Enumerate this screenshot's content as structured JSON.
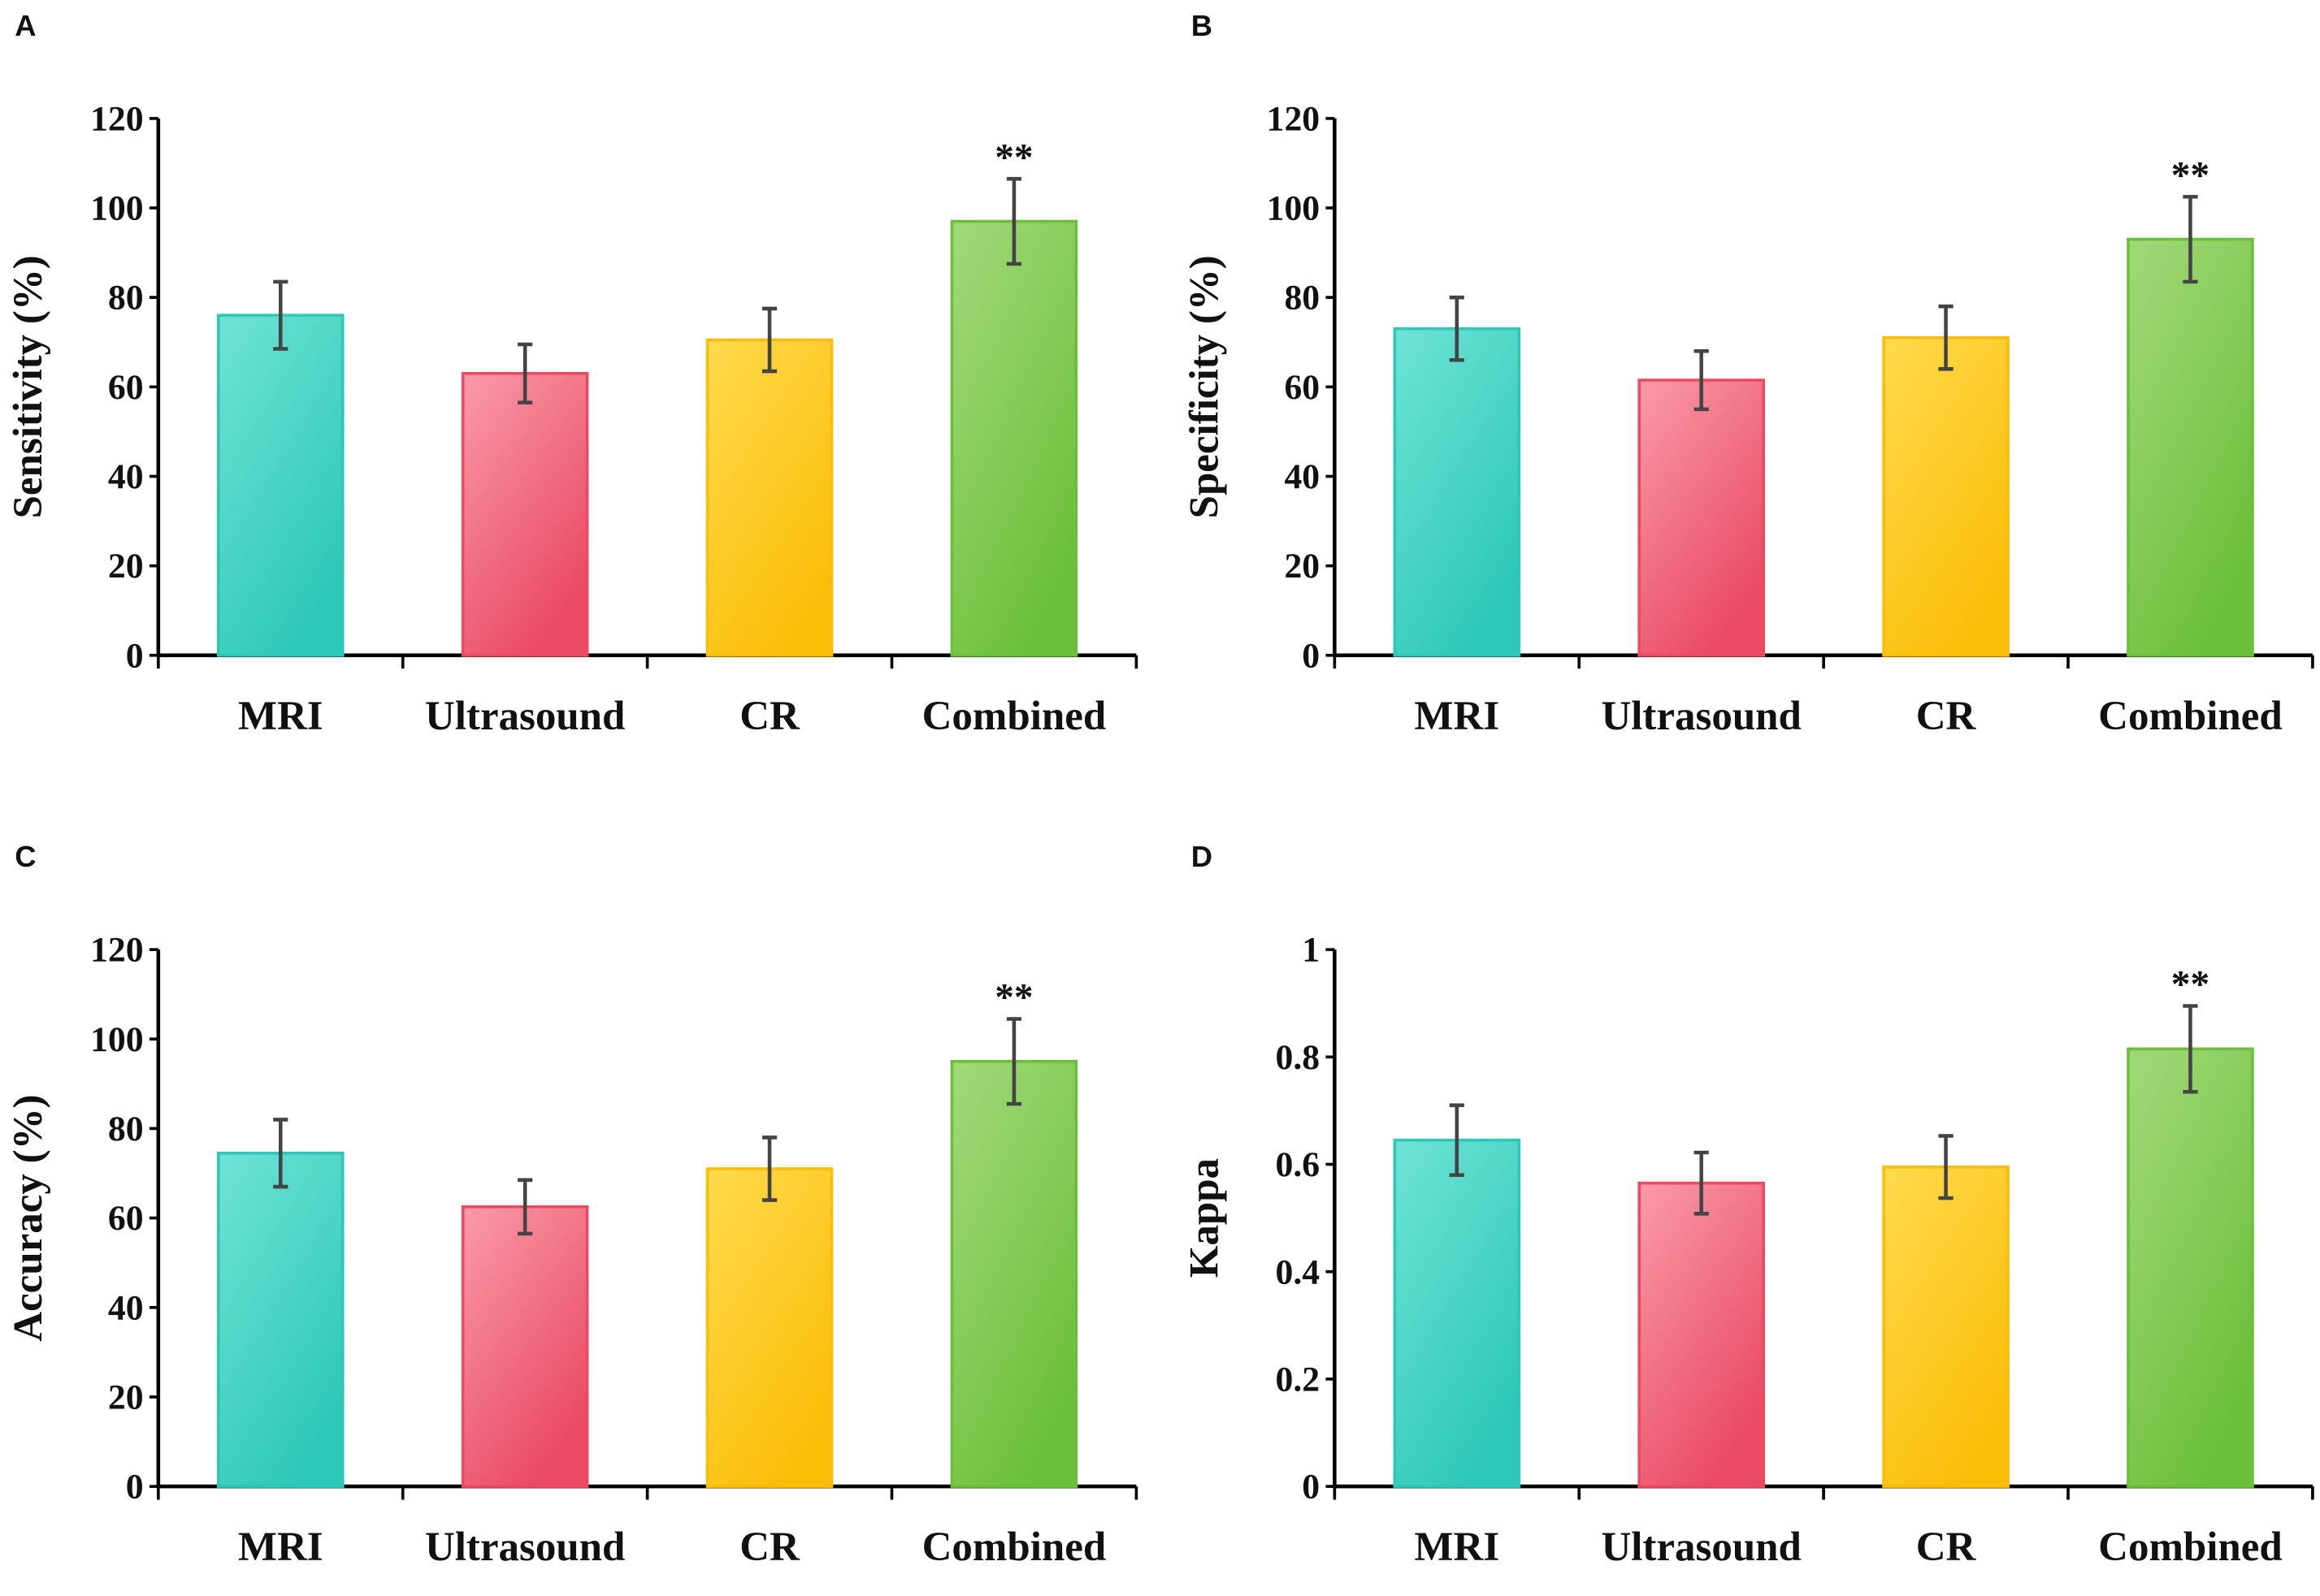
{
  "chart_data": [
    {
      "type": "bar",
      "panel": "A",
      "ylabel": "Sensitivity (%)",
      "ylim": [
        0,
        120
      ],
      "yticks": [
        "0",
        "20",
        "40",
        "60",
        "80",
        "100",
        "120"
      ],
      "categories": [
        "MRI",
        "Ultrasound",
        "CR",
        "Combined"
      ],
      "values": [
        76,
        63,
        70.5,
        97
      ],
      "errors": [
        7.5,
        6.5,
        7,
        9.5
      ],
      "annotations": [
        "",
        "",
        "",
        "**"
      ]
    },
    {
      "type": "bar",
      "panel": "B",
      "ylabel": "Specificity (%)",
      "ylim": [
        0,
        120
      ],
      "yticks": [
        "0",
        "20",
        "40",
        "60",
        "80",
        "100",
        "120"
      ],
      "categories": [
        "MRI",
        "Ultrasound",
        "CR",
        "Combined"
      ],
      "values": [
        73,
        61.5,
        71,
        93
      ],
      "errors": [
        7,
        6.5,
        7,
        9.5
      ],
      "annotations": [
        "",
        "",
        "",
        "**"
      ]
    },
    {
      "type": "bar",
      "panel": "C",
      "ylabel": "Accuracy (%)",
      "ylim": [
        0,
        120
      ],
      "yticks": [
        "0",
        "20",
        "40",
        "60",
        "80",
        "100",
        "120"
      ],
      "categories": [
        "MRI",
        "Ultrasound",
        "CR",
        "Combined"
      ],
      "values": [
        74.5,
        62.5,
        71,
        95
      ],
      "errors": [
        7.5,
        6,
        7,
        9.5
      ],
      "annotations": [
        "",
        "",
        "",
        "**"
      ]
    },
    {
      "type": "bar",
      "panel": "D",
      "ylabel": "Kappa",
      "ylim": [
        0,
        1
      ],
      "yticks": [
        "0",
        "0.2",
        "0.4",
        "0.6",
        "0.8",
        "1"
      ],
      "categories": [
        "MRI",
        "Ultrasound",
        "CR",
        "Combined"
      ],
      "values": [
        0.645,
        0.565,
        0.595,
        0.815
      ],
      "errors": [
        0.065,
        0.057,
        0.058,
        0.08
      ],
      "annotations": [
        "",
        "",
        "",
        "**"
      ]
    }
  ],
  "colors": {
    "MRI": [
      "#6ee3d6",
      "#2ec8b8"
    ],
    "Ultrasound": [
      "#f99aa8",
      "#ea4a62"
    ],
    "CR": [
      "#ffdb4d",
      "#fbbd08"
    ],
    "Combined": [
      "#a2d97a",
      "#6cbf3a"
    ],
    "error_bar": "#444444"
  }
}
